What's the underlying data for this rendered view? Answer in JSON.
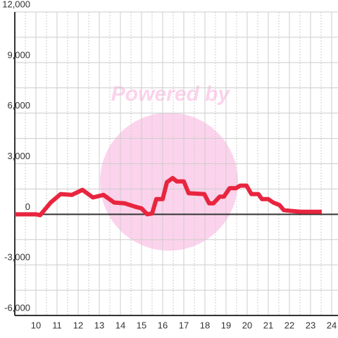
{
  "chart_data": {
    "type": "line",
    "watermark": "Powered by",
    "x": [
      9.0,
      10.0,
      10.2,
      10.7,
      11.17,
      11.7,
      12.2,
      12.7,
      13.2,
      13.7,
      14.2,
      14.7,
      15.0,
      15.27,
      15.5,
      15.7,
      16.0,
      16.2,
      16.47,
      16.67,
      17.0,
      17.23,
      17.97,
      18.2,
      18.4,
      18.7,
      18.9,
      19.17,
      19.47,
      19.67,
      19.97,
      20.2,
      20.53,
      20.7,
      21.0,
      21.23,
      21.53,
      21.73,
      22.07,
      22.53,
      23.53
    ],
    "series": [
      {
        "color": "#e8253f",
        "values": [
          0,
          0,
          -50,
          700,
          1200,
          1150,
          1450,
          1000,
          1150,
          700,
          650,
          450,
          350,
          0,
          50,
          900,
          900,
          1900,
          2150,
          1950,
          1950,
          1250,
          1200,
          650,
          650,
          1050,
          1050,
          1550,
          1550,
          1700,
          1700,
          1200,
          1200,
          900,
          900,
          700,
          550,
          250,
          200,
          150,
          150
        ]
      }
    ],
    "xlim": [
      9,
      24.3
    ],
    "xticks": [
      10,
      11,
      12,
      13,
      14,
      15,
      16,
      17,
      18,
      19,
      20,
      21,
      22,
      23,
      24
    ],
    "ylim": [
      -6000,
      12000
    ],
    "yticks": [
      {
        "value": -6000,
        "label": "-6,000"
      },
      {
        "value": -3000,
        "label": "-3,000"
      },
      0,
      {
        "value": 3000,
        "label": "3,000"
      },
      {
        "value": 6000,
        "label": "6,000"
      },
      {
        "value": 9000,
        "label": "9,000"
      },
      {
        "value": 12000,
        "label": "12,000"
      }
    ],
    "grid": true
  }
}
